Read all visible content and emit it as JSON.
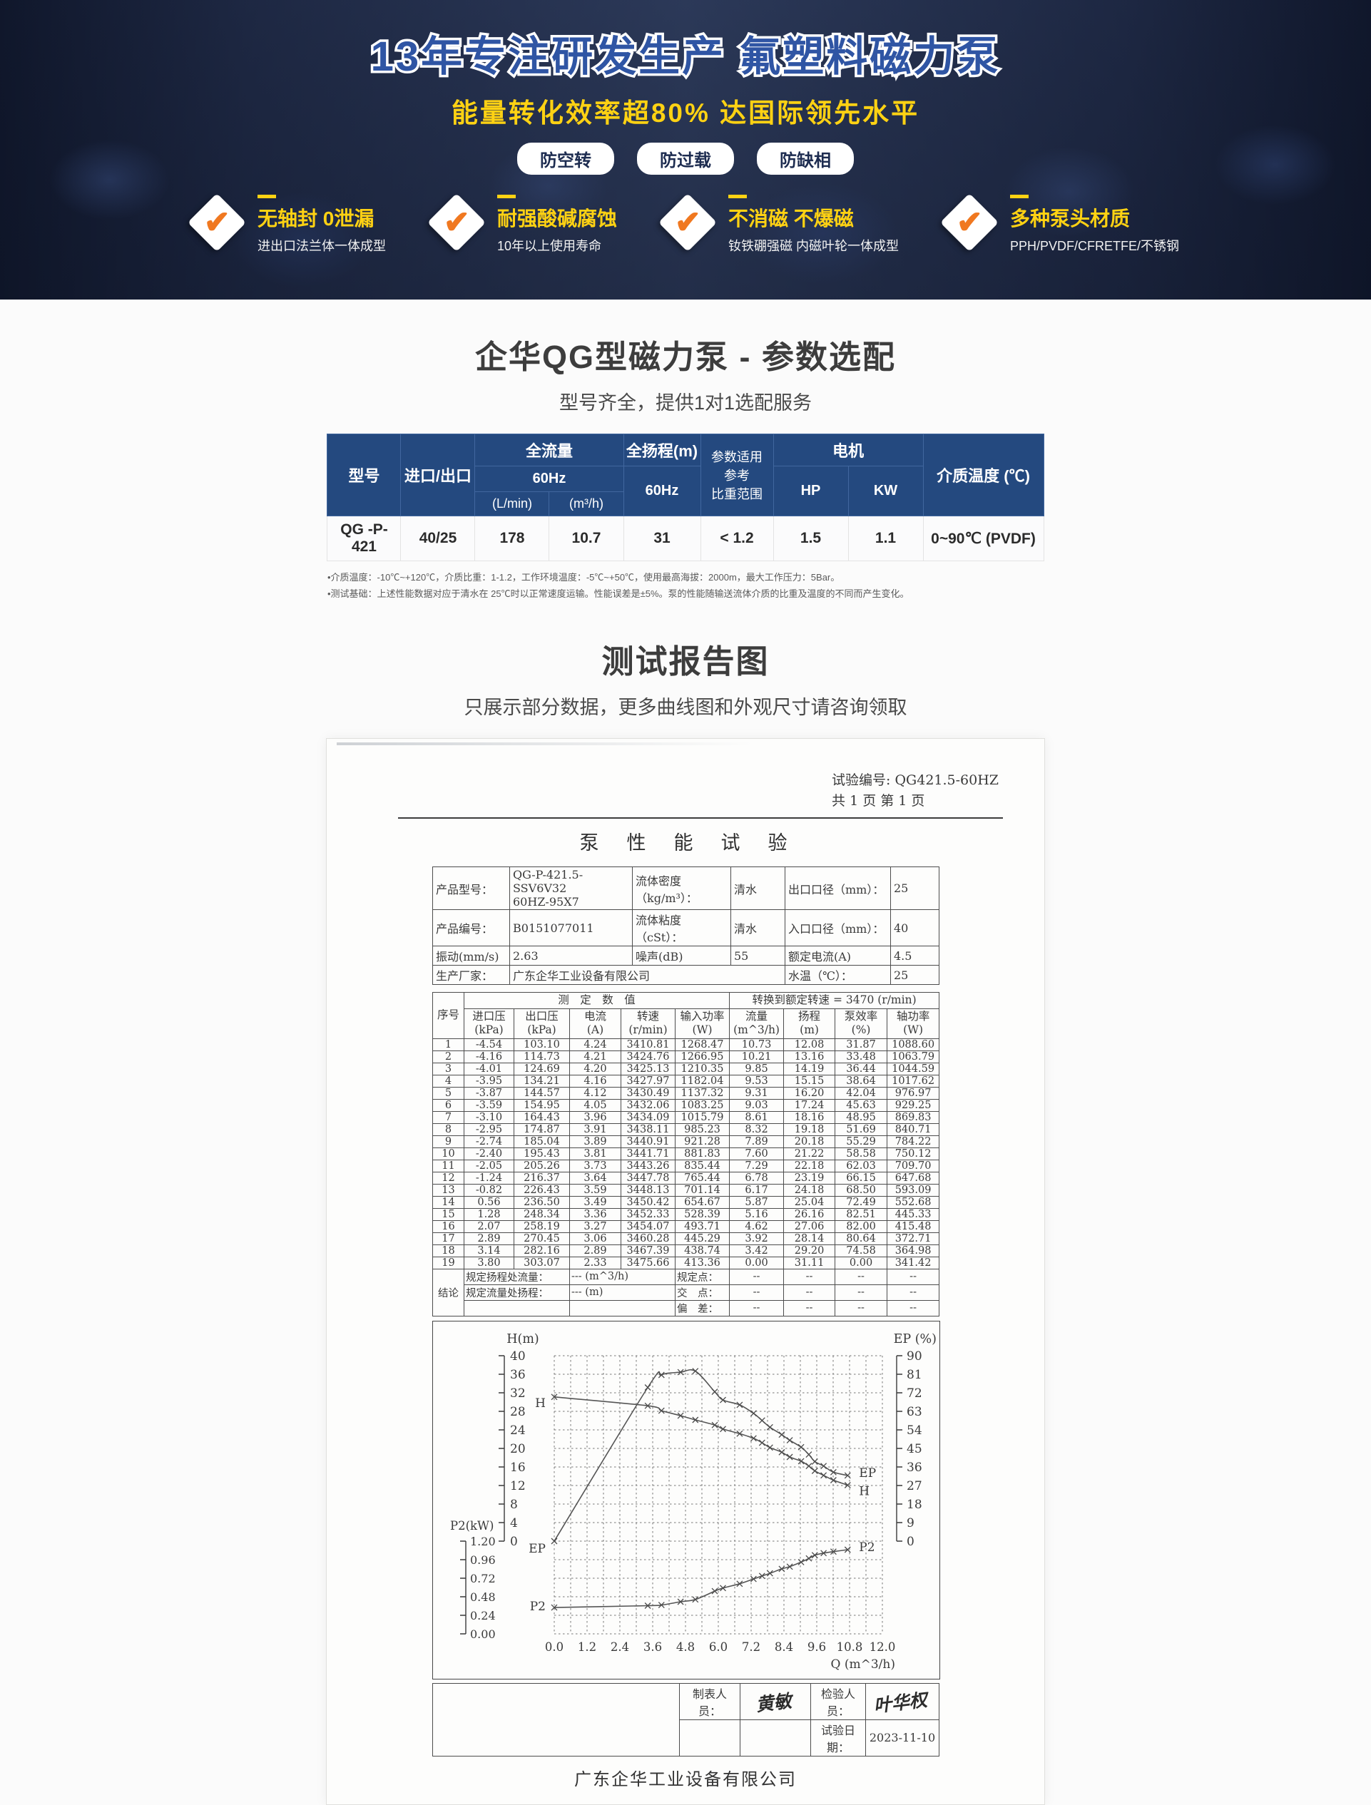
{
  "banner": {
    "title": "13年专注研发生产 氟塑料磁力泵",
    "subtitle": "能量转化效率超80% 达国际领先水平",
    "badges": [
      "防空转",
      "防过载",
      "防缺相"
    ],
    "check_mark": "✔",
    "features": [
      {
        "title": "无轴封 0泄漏",
        "desc": "进出口法兰体一体成型"
      },
      {
        "title": "耐强酸碱腐蚀",
        "desc": "10年以上使用寿命"
      },
      {
        "title": "不消磁 不爆磁",
        "desc": "钕铁硼强磁 内磁叶轮一体成型"
      },
      {
        "title": "多种泵头材质",
        "desc": "PPH/PVDF/CFRETFE/不锈钢"
      }
    ],
    "colors": {
      "title_blue": "#2f55a4",
      "accent_yellow": "#ffd213",
      "check_orange": "#f07820"
    }
  },
  "params_section": {
    "title": "企华QG型磁力泵 - 参数选配",
    "subtitle": "型号齐全，提供1对1选配服务",
    "table": {
      "h_model": "型号",
      "h_inlet": "进口/出口",
      "h_flow": "全流量",
      "h_flow_freq": "60Hz",
      "h_flow_lmin": "(L/min)",
      "h_flow_m3h": "(m³/h)",
      "h_head": "全扬程(m)",
      "h_head_freq": "60Hz",
      "h_gravity": "参数适用\n参考\n比重范围",
      "h_motor": "电机",
      "h_hp": "HP",
      "h_kw": "KW",
      "h_temp": "介质温度 (℃)",
      "row": {
        "model": "QG -P-421",
        "inlet": "40/25",
        "flow_lmin": "178",
        "flow_m3h": "10.7",
        "head": "31",
        "gravity": "< 1.2",
        "hp": "1.5",
        "kw": "1.1",
        "temp": "0~90℃ (PVDF)"
      }
    },
    "notes": [
      "•介质温度：-10℃~+120℃，介质比重：1-1.2，工作环境温度：-5℃~+50℃，使用最高海拔：2000m，最大工作压力：5Bar。",
      "•测试基础：上述性能数据对应于清水在 25℃时以正常速度运输。性能误差是±5%。泵的性能随输送流体介质的比重及温度的不同而产生变化。"
    ]
  },
  "report_section": {
    "title": "测试报告图",
    "subtitle": "只展示部分数据，更多曲线图和外观尺寸请咨询领取"
  },
  "report": {
    "test_no": "试验编号: QG421.5-60HZ",
    "page_no": "共 1 页 第 1 页",
    "title": "泵　性　能　试　验",
    "info_rows": [
      [
        "产品型号：",
        "QG-P-421.5-SSV6V32\n60HZ-95X7",
        "流体密度（kg/m³）：",
        "清水",
        "出口口径（mm）：",
        "25"
      ],
      [
        "产品编号：",
        "B0151077011",
        "流体粘度（cSt）：",
        "清水",
        "入口口径（mm）：",
        "40"
      ],
      [
        "振动(mm/s)",
        "2.63",
        "噪声(dB)",
        "55",
        "额定电流(A)",
        "4.5"
      ],
      [
        "生产厂家：",
        "广东企华工业设备有限公司",
        "",
        "",
        "水温（℃）：",
        "25"
      ]
    ],
    "seq_label": "序号",
    "meas_group": "测　定　数　值",
    "conv_group": "转换到额定转速 = 3470 (r/min)",
    "col_headers": [
      "进口压\n(kPa)",
      "出口压\n(kPa)",
      "电流\n(A)",
      "转速\n(r/min)",
      "输入功率\n(W)",
      "流量\n(m^3/h)",
      "扬程\n(m)",
      "泵效率\n(%)",
      "轴功率\n(W)"
    ],
    "rows": [
      [
        "1",
        "-4.54",
        "103.10",
        "4.24",
        "3410.81",
        "1268.47",
        "10.73",
        "12.08",
        "31.87",
        "1088.60"
      ],
      [
        "2",
        "-4.16",
        "114.73",
        "4.21",
        "3424.76",
        "1266.95",
        "10.21",
        "13.16",
        "33.48",
        "1063.79"
      ],
      [
        "3",
        "-4.01",
        "124.69",
        "4.20",
        "3425.13",
        "1210.35",
        "9.85",
        "14.19",
        "36.44",
        "1044.59"
      ],
      [
        "4",
        "-3.95",
        "134.21",
        "4.16",
        "3427.97",
        "1182.04",
        "9.53",
        "15.15",
        "38.64",
        "1017.62"
      ],
      [
        "5",
        "-3.87",
        "144.57",
        "4.12",
        "3430.49",
        "1137.32",
        "9.31",
        "16.20",
        "42.04",
        "976.97"
      ],
      [
        "6",
        "-3.59",
        "154.95",
        "4.05",
        "3432.06",
        "1083.25",
        "9.03",
        "17.24",
        "45.63",
        "929.25"
      ],
      [
        "7",
        "-3.10",
        "164.43",
        "3.96",
        "3434.09",
        "1015.79",
        "8.61",
        "18.16",
        "48.95",
        "869.83"
      ],
      [
        "8",
        "-2.95",
        "174.87",
        "3.91",
        "3438.11",
        "985.23",
        "8.32",
        "19.18",
        "51.69",
        "840.71"
      ],
      [
        "9",
        "-2.74",
        "185.04",
        "3.89",
        "3440.91",
        "921.28",
        "7.89",
        "20.18",
        "55.29",
        "784.22"
      ],
      [
        "10",
        "-2.40",
        "195.43",
        "3.81",
        "3441.71",
        "881.83",
        "7.60",
        "21.22",
        "58.58",
        "750.12"
      ],
      [
        "11",
        "-2.05",
        "205.26",
        "3.73",
        "3443.26",
        "835.44",
        "7.29",
        "22.18",
        "62.03",
        "709.70"
      ],
      [
        "12",
        "-1.24",
        "216.37",
        "3.64",
        "3447.78",
        "765.44",
        "6.78",
        "23.19",
        "66.15",
        "647.68"
      ],
      [
        "13",
        "-0.82",
        "226.43",
        "3.59",
        "3448.13",
        "701.14",
        "6.17",
        "24.18",
        "68.50",
        "593.09"
      ],
      [
        "14",
        "0.56",
        "236.50",
        "3.49",
        "3450.42",
        "654.67",
        "5.87",
        "25.04",
        "72.49",
        "552.68"
      ],
      [
        "15",
        "1.28",
        "248.34",
        "3.36",
        "3452.33",
        "528.39",
        "5.16",
        "26.16",
        "82.51",
        "445.33"
      ],
      [
        "16",
        "2.07",
        "258.19",
        "3.27",
        "3454.07",
        "493.71",
        "4.62",
        "27.06",
        "82.00",
        "415.48"
      ],
      [
        "17",
        "2.89",
        "270.45",
        "3.06",
        "3460.28",
        "445.29",
        "3.92",
        "28.14",
        "80.64",
        "372.71"
      ],
      [
        "18",
        "3.14",
        "282.16",
        "2.89",
        "3467.39",
        "438.74",
        "3.42",
        "29.20",
        "74.58",
        "364.98"
      ],
      [
        "19",
        "3.80",
        "303.07",
        "2.33",
        "3475.66",
        "413.36",
        "0.00",
        "31.11",
        "0.00",
        "341.42"
      ]
    ],
    "conclusion": {
      "label": "结论",
      "rows": [
        [
          "规定扬程处流量：",
          "--- (m^3/h)",
          "规定点：",
          "--",
          "--",
          "--",
          "--"
        ],
        [
          "规定流量处扬程：",
          "--- (m)",
          "交　点：",
          "--",
          "--",
          "--",
          "--"
        ],
        [
          "",
          "",
          "偏　差：",
          "--",
          "--",
          "--",
          "--"
        ]
      ]
    },
    "footer": {
      "maker_label": "制表人员：",
      "maker_sign": "黄敏",
      "checker_label": "检验人员：",
      "checker_sign": "叶华权",
      "date_label": "试验日期：",
      "date_value": "2023-11-10"
    },
    "company": "广东企华工业设备有限公司"
  },
  "chart_data": {
    "type": "line",
    "title": "泵性能试验曲线",
    "xlabel": "Q (m^3/h)",
    "x_range": [
      0,
      12
    ],
    "x_tick_labels": [
      "0.0",
      "1.2",
      "2.4",
      "3.6",
      "4.8",
      "6.0",
      "7.2",
      "8.4",
      "9.6",
      "10.8",
      "12.0"
    ],
    "h_axis": {
      "label": "H(m)",
      "range": [
        0,
        40
      ],
      "tick_labels": [
        "40",
        "36",
        "32",
        "28",
        "24",
        "20",
        "16",
        "12",
        "8",
        "4",
        "0"
      ]
    },
    "ep_axis": {
      "label": "EP (%)",
      "range": [
        0,
        90
      ],
      "tick_labels": [
        "90",
        "81",
        "72",
        "63",
        "54",
        "45",
        "36",
        "27",
        "18",
        "9",
        "0"
      ]
    },
    "p2_axis": {
      "label": "P2(kW)",
      "range": [
        0,
        1.2
      ],
      "tick_labels": [
        "1.20",
        "0.96",
        "0.72",
        "0.48",
        "0.24",
        "0.00"
      ]
    },
    "grid": "dashed",
    "rated_speed_note": "转换到额定转速 = 3470 (r/min)",
    "series": [
      {
        "name": "H",
        "axis": "h",
        "points": [
          [
            0,
            31.11
          ],
          [
            3.42,
            29.2
          ],
          [
            3.92,
            28.14
          ],
          [
            4.62,
            27.06
          ],
          [
            5.16,
            26.16
          ],
          [
            5.87,
            25.04
          ],
          [
            6.17,
            24.18
          ],
          [
            6.78,
            23.19
          ],
          [
            7.29,
            22.18
          ],
          [
            7.6,
            21.22
          ],
          [
            7.89,
            20.18
          ],
          [
            8.32,
            19.18
          ],
          [
            8.61,
            18.16
          ],
          [
            9.03,
            17.24
          ],
          [
            9.31,
            16.2
          ],
          [
            9.53,
            15.15
          ],
          [
            9.85,
            14.19
          ],
          [
            10.21,
            13.16
          ],
          [
            10.73,
            12.08
          ]
        ]
      },
      {
        "name": "EP",
        "axis": "ep",
        "points": [
          [
            0,
            0
          ],
          [
            3.42,
            74.58
          ],
          [
            3.92,
            80.64
          ],
          [
            4.62,
            82.0
          ],
          [
            5.16,
            82.51
          ],
          [
            5.87,
            72.49
          ],
          [
            6.17,
            68.5
          ],
          [
            6.78,
            66.15
          ],
          [
            7.29,
            62.03
          ],
          [
            7.6,
            58.58
          ],
          [
            7.89,
            55.29
          ],
          [
            8.32,
            51.69
          ],
          [
            8.61,
            48.95
          ],
          [
            9.03,
            45.63
          ],
          [
            9.31,
            42.04
          ],
          [
            9.53,
            38.64
          ],
          [
            9.85,
            36.44
          ],
          [
            10.21,
            33.48
          ],
          [
            10.73,
            31.87
          ]
        ]
      },
      {
        "name": "P2",
        "axis": "p2",
        "points": [
          [
            0,
            0.341
          ],
          [
            3.42,
            0.365
          ],
          [
            3.92,
            0.373
          ],
          [
            4.62,
            0.415
          ],
          [
            5.16,
            0.445
          ],
          [
            5.87,
            0.553
          ],
          [
            6.17,
            0.593
          ],
          [
            6.78,
            0.648
          ],
          [
            7.29,
            0.71
          ],
          [
            7.6,
            0.75
          ],
          [
            7.89,
            0.784
          ],
          [
            8.32,
            0.841
          ],
          [
            8.61,
            0.87
          ],
          [
            9.03,
            0.929
          ],
          [
            9.31,
            0.977
          ],
          [
            9.53,
            1.018
          ],
          [
            9.85,
            1.045
          ],
          [
            10.21,
            1.064
          ],
          [
            10.73,
            1.089
          ]
        ]
      }
    ]
  }
}
